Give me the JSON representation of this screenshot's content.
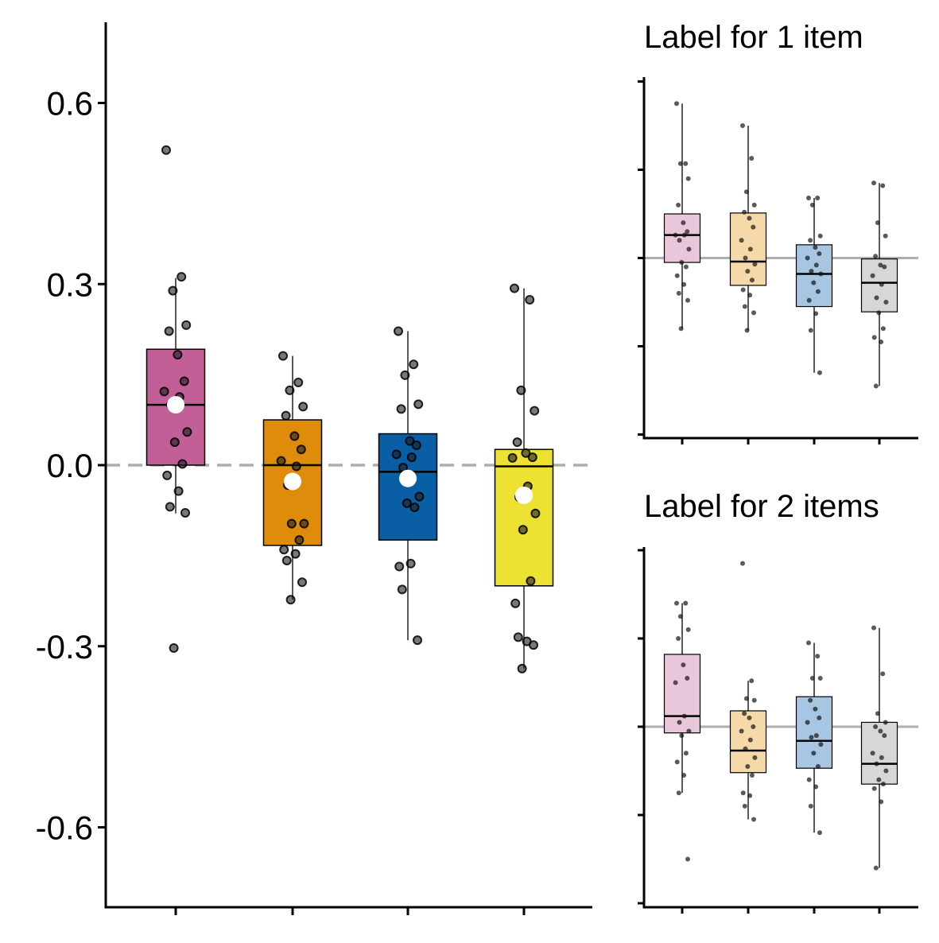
{
  "chart_data": [
    {
      "type": "box",
      "panel": "main",
      "title": "",
      "xlabel": "",
      "ylabel": "",
      "categories": [
        "",
        "",
        "",
        ""
      ],
      "ylim": [
        -0.6,
        0.6
      ],
      "yticks": [
        -0.6,
        -0.3,
        0.0,
        0.3,
        0.6
      ],
      "ytick_labels": [
        "-0.6",
        "-0.3",
        "0.0",
        "0.3",
        "0.6"
      ],
      "reference_line": 0.0,
      "colors": [
        "#C15F96",
        "#DE8C0A",
        "#0A5EA4",
        "#EDE232"
      ],
      "boxes": [
        {
          "q1": 0.0,
          "median": 0.1,
          "q3": 0.192,
          "whisker_low": -0.08,
          "whisker_high": 0.31,
          "mean": 0.1
        },
        {
          "q1": -0.133,
          "median": 0.0,
          "q3": 0.075,
          "whisker_low": -0.223,
          "whisker_high": 0.181,
          "mean": -0.027
        },
        {
          "q1": -0.124,
          "median": -0.011,
          "q3": 0.052,
          "whisker_low": -0.29,
          "whisker_high": 0.222,
          "mean": -0.022
        },
        {
          "q1": -0.2,
          "median": -0.002,
          "q3": 0.026,
          "whisker_low": -0.337,
          "whisker_high": 0.293,
          "mean": -0.05
        }
      ],
      "points": [
        [
          0.522,
          0.312,
          0.289,
          0.232,
          0.222,
          0.183,
          0.139,
          0.122,
          0.113,
          0.1,
          0.055,
          0.038,
          0.002,
          -0.017,
          -0.043,
          -0.069,
          -0.079,
          -0.303
        ],
        [
          0.181,
          0.137,
          0.124,
          0.097,
          0.082,
          0.048,
          0.026,
          0.007,
          -0.002,
          -0.033,
          -0.097,
          -0.097,
          -0.124,
          -0.14,
          -0.147,
          -0.158,
          -0.194,
          -0.223
        ],
        [
          0.222,
          0.167,
          0.149,
          0.101,
          0.093,
          0.04,
          0.033,
          0.018,
          0.013,
          -0.004,
          -0.052,
          -0.063,
          -0.07,
          -0.168,
          -0.163,
          -0.206,
          -0.29
        ],
        [
          0.293,
          0.274,
          0.124,
          0.09,
          0.038,
          0.02,
          0.013,
          0.012,
          -0.035,
          -0.053,
          -0.08,
          -0.107,
          -0.192,
          -0.229,
          -0.292,
          -0.285,
          -0.298,
          -0.337
        ]
      ]
    },
    {
      "type": "box",
      "panel": "top-right",
      "title": "Label for 1 item",
      "xlabel": "",
      "ylabel": "",
      "categories": [
        "",
        "",
        "",
        ""
      ],
      "ylim": [
        -2,
        2
      ],
      "yticks": [
        -2,
        -1,
        0,
        1,
        2
      ],
      "ytick_labels": [
        "",
        "",
        "",
        "",
        ""
      ],
      "reference_line": 0,
      "colors": [
        "#E9C7DA",
        "#F5D9A9",
        "#A8C6E1",
        "#D7D7D7"
      ],
      "boxes": [
        {
          "q1": -0.05,
          "median": 0.26,
          "q3": 0.5,
          "whisker_low": -0.8,
          "whisker_high": 1.75
        },
        {
          "q1": -0.31,
          "median": -0.04,
          "q3": 0.51,
          "whisker_low": -0.82,
          "whisker_high": 1.5
        },
        {
          "q1": -0.55,
          "median": -0.18,
          "q3": 0.15,
          "whisker_low": -1.3,
          "whisker_high": 0.68
        },
        {
          "q1": -0.61,
          "median": -0.28,
          "q3": -0.01,
          "whisker_low": -1.45,
          "whisker_high": 0.85
        }
      ],
      "points": [
        [
          1.75,
          1.07,
          1.07,
          0.9,
          0.6,
          0.4,
          0.3,
          0.26,
          0.26,
          0.2,
          0.1,
          -0.05,
          -0.1,
          -0.2,
          -0.3,
          -0.4,
          -0.48,
          -0.8
        ],
        [
          1.5,
          1.13,
          0.75,
          0.6,
          0.52,
          0.45,
          0.35,
          0.2,
          0.1,
          0.0,
          -0.07,
          -0.15,
          -0.25,
          -0.36,
          -0.42,
          -0.55,
          -0.62,
          -0.82
        ],
        [
          0.68,
          0.68,
          0.6,
          0.25,
          0.2,
          0.12,
          0.05,
          0.0,
          -0.08,
          -0.15,
          -0.18,
          -0.28,
          -0.38,
          -0.48,
          -0.63,
          -0.82,
          -1.3
        ],
        [
          0.85,
          0.82,
          0.4,
          0.25,
          0.02,
          -0.08,
          -0.1,
          -0.2,
          -0.3,
          -0.45,
          -0.5,
          -0.62,
          -0.8,
          -0.9,
          -0.95,
          -1.45
        ]
      ]
    },
    {
      "type": "box",
      "panel": "bottom-right",
      "title": "Label for 2 items",
      "xlabel": "",
      "ylabel": "",
      "categories": [
        "",
        "",
        "",
        ""
      ],
      "ylim": [
        -2,
        2
      ],
      "yticks": [
        -2,
        -1,
        0,
        1,
        2
      ],
      "ytick_labels": [
        "",
        "",
        "",
        "",
        ""
      ],
      "reference_line": 0,
      "colors": [
        "#E9C7DA",
        "#F5D9A9",
        "#A8C6E1",
        "#D7D7D7"
      ],
      "boxes": [
        {
          "q1": -0.07,
          "median": 0.12,
          "q3": 0.82,
          "whisker_low": -0.75,
          "whisker_high": 1.4
        },
        {
          "q1": -0.52,
          "median": -0.27,
          "q3": 0.18,
          "whisker_low": -1.05,
          "whisker_high": 0.52
        },
        {
          "q1": -0.47,
          "median": -0.16,
          "q3": 0.34,
          "whisker_low": -1.2,
          "whisker_high": 0.95
        },
        {
          "q1": -0.65,
          "median": -0.42,
          "q3": 0.05,
          "whisker_low": -1.6,
          "whisker_high": 1.12
        }
      ],
      "points": [
        [
          1.4,
          1.4,
          1.25,
          1.1,
          1.0,
          0.7,
          0.55,
          0.5,
          0.12,
          0.05,
          -0.05,
          -0.1,
          -0.3,
          -0.4,
          -0.55,
          -0.75,
          -1.5
        ],
        [
          1.85,
          0.52,
          0.32,
          0.3,
          0.15,
          0.1,
          0.0,
          -0.05,
          -0.15,
          -0.25,
          -0.35,
          -0.45,
          -0.55,
          -0.75,
          -0.78,
          -0.9,
          -1.05
        ],
        [
          0.95,
          0.8,
          0.55,
          0.55,
          0.3,
          0.2,
          0.1,
          0.05,
          -0.1,
          -0.12,
          -0.2,
          -0.3,
          -0.45,
          -0.6,
          -0.68,
          -0.9,
          -1.2
        ],
        [
          1.12,
          0.6,
          0.15,
          0.05,
          0.0,
          -0.05,
          -0.1,
          -0.3,
          -0.35,
          -0.42,
          -0.5,
          -0.6,
          -0.65,
          -0.7,
          -0.85,
          -1.6
        ]
      ]
    }
  ]
}
